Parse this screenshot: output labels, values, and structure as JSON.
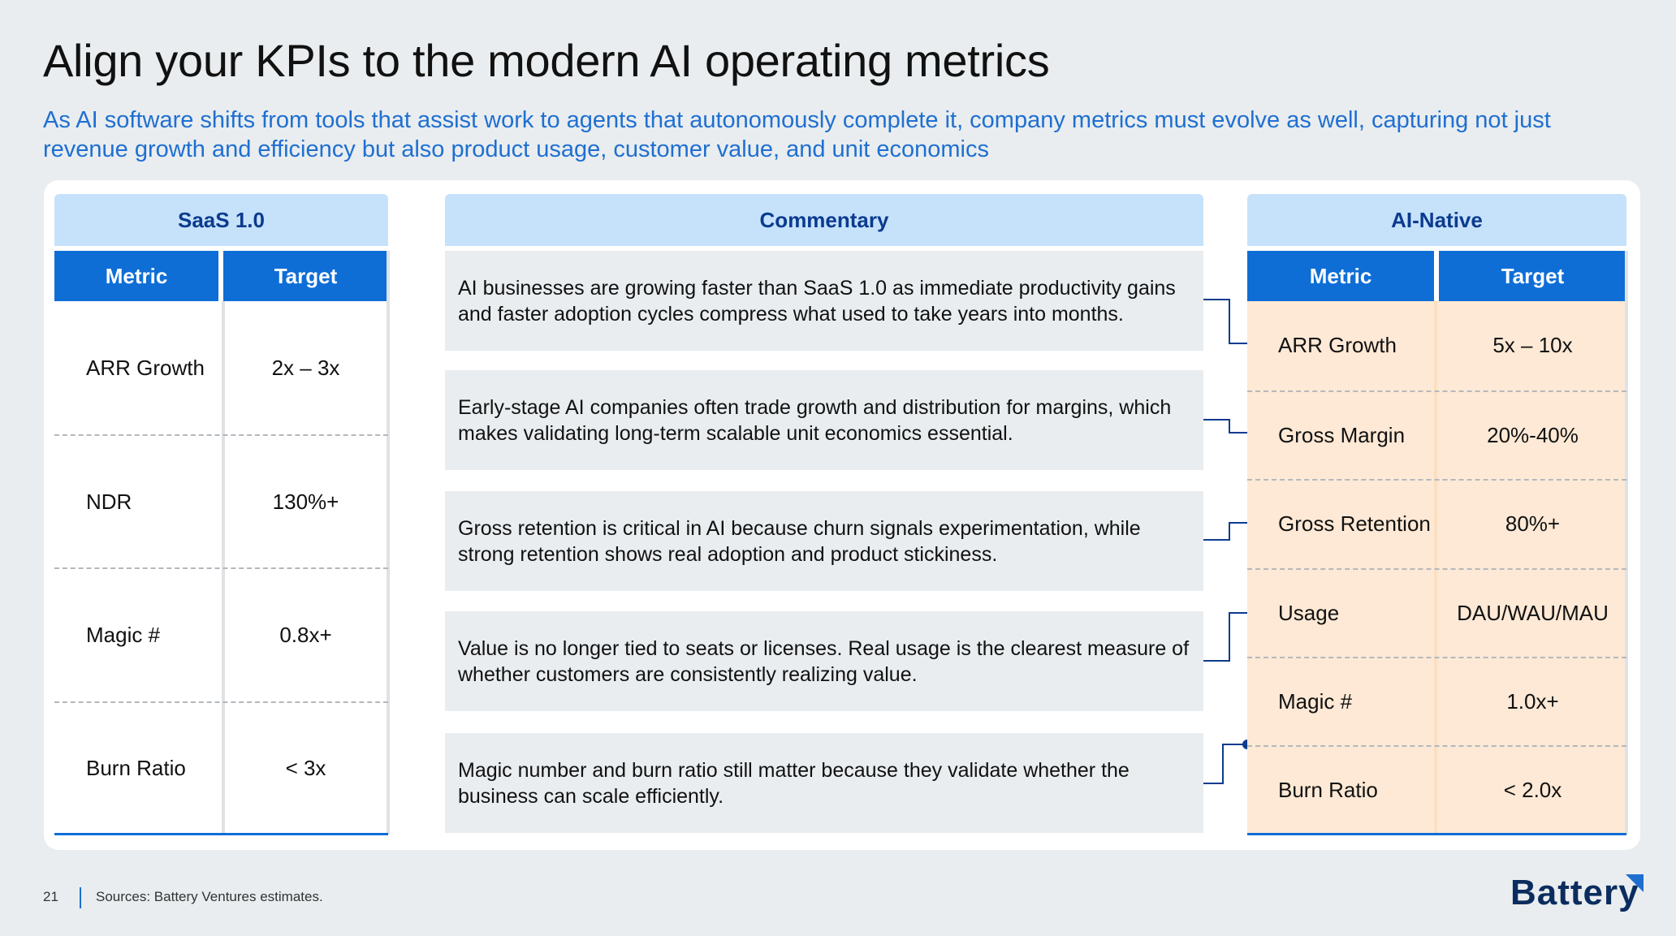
{
  "title": "Align your KPIs to the modern AI operating metrics",
  "subtitle": "As AI software shifts from tools that assist work to agents that autonomously complete it, company metrics must evolve as well, capturing not just revenue growth and efficiency but also product usage, customer value, and unit economics",
  "saas": {
    "header": "SaaS 1.0",
    "col_metric": "Metric",
    "col_target": "Target",
    "rows": [
      {
        "metric": "ARR Growth",
        "target": "2x – 3x"
      },
      {
        "metric": "NDR",
        "target": "130%+"
      },
      {
        "metric": "Magic #",
        "target": "0.8x+"
      },
      {
        "metric": "Burn Ratio",
        "target": "< 3x"
      }
    ]
  },
  "commentary": {
    "header": "Commentary",
    "items": [
      "AI businesses are growing faster than SaaS 1.0 as immediate productivity gains and faster adoption cycles compress what used to take years into months.",
      "Early-stage AI companies often trade growth and distribution for margins, which makes validating long-term scalable unit economics essential.",
      "Gross retention is critical in AI because churn signals experimentation, while strong retention shows real adoption and product stickiness.",
      "Value is no longer tied to seats or licenses.  Real usage is the clearest measure of whether customers are consistently realizing value.",
      "Magic number and burn ratio still matter because they validate whether the business can scale efficiently."
    ]
  },
  "ai": {
    "header": "AI-Native",
    "col_metric": "Metric",
    "col_target": "Target",
    "rows": [
      {
        "metric": "ARR Growth",
        "target": "5x – 10x"
      },
      {
        "metric": "Gross Margin",
        "target": "20%-40%"
      },
      {
        "metric": "Gross Retention",
        "target": "80%+"
      },
      {
        "metric": "Usage",
        "target": "DAU/WAU/MAU"
      },
      {
        "metric": "Magic #",
        "target": "1.0x+"
      },
      {
        "metric": "Burn Ratio",
        "target": "< 2.0x"
      }
    ]
  },
  "footer": {
    "page_number": "21",
    "source": "Sources: Battery Ventures estimates.",
    "logo": "Battery"
  },
  "colors": {
    "accent_blue": "#0f6ed6",
    "header_light_blue": "#c6e2fb",
    "ai_fill": "#fde9d5",
    "subtitle_blue": "#1f6fd1"
  }
}
